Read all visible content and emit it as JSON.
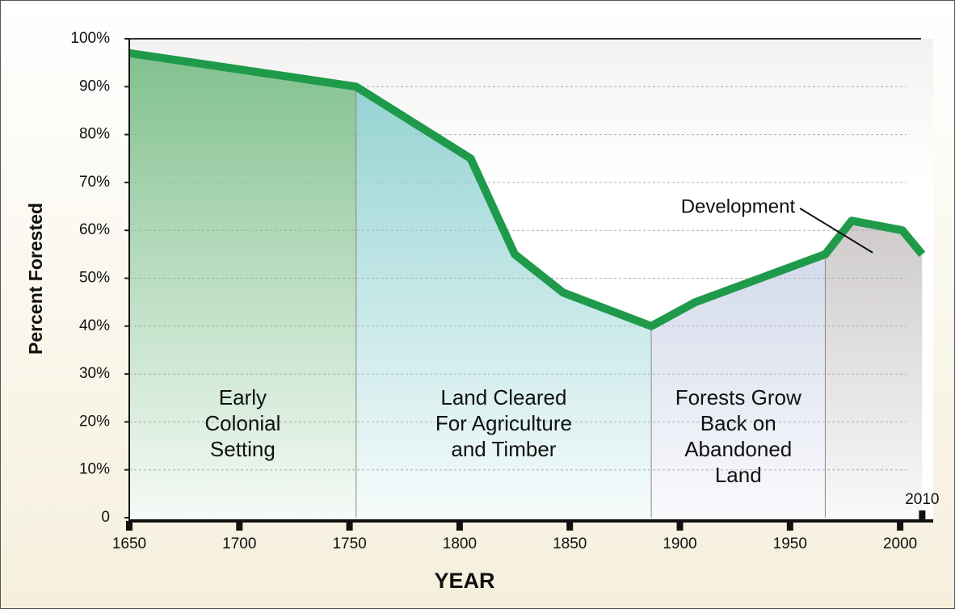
{
  "chart_data": {
    "type": "area-line",
    "x": [
      1650,
      1753,
      1805,
      1825,
      1847,
      1887,
      1907,
      1966,
      1978,
      2001,
      2010
    ],
    "values": [
      97,
      90,
      75,
      55,
      47,
      40,
      45,
      55,
      62,
      60,
      55
    ],
    "color": "#1f9a4b",
    "ylabel": "Percent Forested",
    "xlabel": "YEAR",
    "xlim": [
      1650,
      2015
    ],
    "ylim": [
      0,
      100
    ],
    "xticks": [
      1650,
      1700,
      1750,
      1800,
      1850,
      1900,
      1950,
      2000
    ],
    "yticks": [
      0,
      {
        "value": 10,
        "label": "10%"
      },
      {
        "value": 20,
        "label": "20%"
      },
      {
        "value": 30,
        "label": "30%"
      },
      {
        "value": 40,
        "label": "40%"
      },
      {
        "value": 50,
        "label": "50%"
      },
      {
        "value": 60,
        "label": "60%"
      },
      {
        "value": 70,
        "label": "70%"
      },
      {
        "value": 80,
        "label": "80%"
      },
      {
        "value": 90,
        "label": "90%"
      },
      {
        "value": 100,
        "label": "100%"
      }
    ],
    "grid": true,
    "regions": [
      {
        "start": 1650,
        "end": 1753,
        "color": "#7fc08c",
        "label": [
          "Early",
          "Colonial",
          "Setting"
        ]
      },
      {
        "start": 1753,
        "end": 1887,
        "color": "#8ccfcf",
        "label": [
          "Land Cleared",
          "For Agriculture",
          "and Timber"
        ]
      },
      {
        "start": 1887,
        "end": 1966,
        "color": "#b5c0dc",
        "label": [
          "Forests Grow",
          "Back on",
          "Abandoned",
          "Land"
        ]
      },
      {
        "start": 1966,
        "end": 2010,
        "color": "#b4afae",
        "label": []
      }
    ],
    "annotations": [
      {
        "text": "Development",
        "x": 1978,
        "y": 55
      },
      {
        "text": "2010",
        "x": 2010
      }
    ]
  }
}
